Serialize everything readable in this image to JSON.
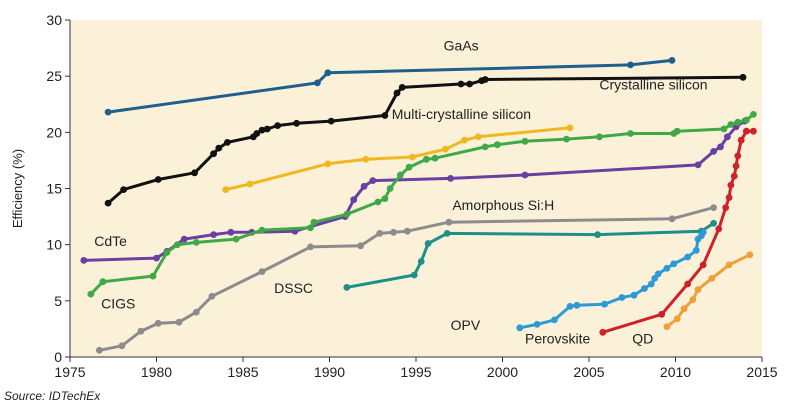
{
  "chart_data": {
    "type": "line",
    "title": "",
    "xlabel": "",
    "ylabel": "Efficiency (%)",
    "xlim": [
      1975,
      2015
    ],
    "ylim": [
      0,
      30
    ],
    "x_ticks": [
      1975,
      1980,
      1985,
      1990,
      1995,
      2000,
      2005,
      2010,
      2015
    ],
    "y_ticks": [
      0,
      5,
      10,
      15,
      20,
      25,
      30
    ],
    "grid": false,
    "background": "#fbf1d9",
    "source": "Source: IDTechEx",
    "series": [
      {
        "name": "GaAs",
        "color": "#1f5f8b",
        "label_at": [
          1996.6,
          27.3
        ],
        "points": [
          [
            1977.2,
            21.8
          ],
          [
            1989.3,
            24.4
          ],
          [
            1989.9,
            25.3
          ],
          [
            2007.4,
            26.0
          ],
          [
            2009.8,
            26.4
          ]
        ]
      },
      {
        "name": "Crystalline silicon",
        "color": "#111111",
        "label_at": [
          2005.6,
          23.8
        ],
        "points": [
          [
            1977.2,
            13.7
          ],
          [
            1978.1,
            14.9
          ],
          [
            1980.1,
            15.8
          ],
          [
            1982.2,
            16.4
          ],
          [
            1983.3,
            18.1
          ],
          [
            1983.6,
            18.6
          ],
          [
            1984.1,
            19.1
          ],
          [
            1985.6,
            19.6
          ],
          [
            1985.8,
            19.9
          ],
          [
            1986.1,
            20.2
          ],
          [
            1986.4,
            20.3
          ],
          [
            1987.0,
            20.6
          ],
          [
            1988.1,
            20.8
          ],
          [
            1990.1,
            21.0
          ],
          [
            1993.2,
            21.5
          ],
          [
            1993.9,
            23.5
          ],
          [
            1994.2,
            24.0
          ],
          [
            1997.6,
            24.3
          ],
          [
            1998.1,
            24.3
          ],
          [
            1998.8,
            24.6
          ],
          [
            1999.0,
            24.7
          ],
          [
            2013.9,
            24.9
          ]
        ]
      },
      {
        "name": "Multi-crystalline silicon",
        "color": "#f0b820",
        "label_at": [
          1993.6,
          21.2
        ],
        "points": [
          [
            1984.0,
            14.9
          ],
          [
            1985.4,
            15.4
          ],
          [
            1989.9,
            17.2
          ],
          [
            1992.1,
            17.6
          ],
          [
            1994.8,
            17.8
          ],
          [
            1996.7,
            18.5
          ],
          [
            1997.8,
            19.3
          ],
          [
            1998.6,
            19.6
          ],
          [
            2003.9,
            20.4
          ]
        ]
      },
      {
        "name": "CdTe",
        "color": "#6a3fa0",
        "label_at": [
          1976.4,
          9.9
        ],
        "points": [
          [
            1975.8,
            8.6
          ],
          [
            1980.0,
            8.8
          ],
          [
            1980.6,
            9.4
          ],
          [
            1981.6,
            10.5
          ],
          [
            1983.3,
            10.9
          ],
          [
            1984.3,
            11.1
          ],
          [
            1985.5,
            11.1
          ],
          [
            1988.0,
            11.2
          ],
          [
            1990.9,
            12.5
          ],
          [
            1991.4,
            14.0
          ],
          [
            1992.0,
            15.2
          ],
          [
            1992.5,
            15.7
          ],
          [
            1997.0,
            15.9
          ],
          [
            2001.3,
            16.2
          ],
          [
            2011.3,
            17.1
          ],
          [
            2012.2,
            18.3
          ],
          [
            2012.6,
            18.7
          ],
          [
            2013.0,
            19.6
          ],
          [
            2013.5,
            20.5
          ],
          [
            2014.0,
            21.0
          ]
        ]
      },
      {
        "name": "CIGS",
        "color": "#3faa45",
        "label_at": [
          1976.8,
          4.3
        ],
        "points": [
          [
            1976.2,
            5.6
          ],
          [
            1976.9,
            6.7
          ],
          [
            1979.8,
            7.2
          ],
          [
            1980.6,
            9.3
          ],
          [
            1981.2,
            10.0
          ],
          [
            1982.3,
            10.2
          ],
          [
            1984.6,
            10.5
          ],
          [
            1986.1,
            11.3
          ],
          [
            1988.9,
            11.5
          ],
          [
            1989.1,
            12.0
          ],
          [
            1991.0,
            12.7
          ],
          [
            1992.8,
            13.8
          ],
          [
            1993.2,
            14.1
          ],
          [
            1993.5,
            15.0
          ],
          [
            1994.1,
            16.2
          ],
          [
            1994.6,
            16.9
          ],
          [
            1995.6,
            17.6
          ],
          [
            1996.1,
            17.7
          ],
          [
            1999.0,
            18.7
          ],
          [
            1999.7,
            18.9
          ],
          [
            2001.3,
            19.2
          ],
          [
            2003.7,
            19.4
          ],
          [
            2005.6,
            19.6
          ],
          [
            2007.4,
            19.9
          ],
          [
            2009.9,
            19.9
          ],
          [
            2010.1,
            20.1
          ],
          [
            2012.8,
            20.3
          ],
          [
            2013.2,
            20.7
          ],
          [
            2013.6,
            20.9
          ],
          [
            2014.1,
            21.1
          ],
          [
            2014.5,
            21.6
          ]
        ]
      },
      {
        "name": "Amorphous Si:H",
        "color": "#8c8c8c",
        "label_at": [
          1997.1,
          13.1
        ],
        "points": [
          [
            1976.7,
            0.6
          ],
          [
            1978.0,
            1.0
          ],
          [
            1979.1,
            2.3
          ],
          [
            1980.1,
            3.0
          ],
          [
            1981.3,
            3.1
          ],
          [
            1982.3,
            4.0
          ],
          [
            1983.2,
            5.4
          ],
          [
            1986.1,
            7.6
          ],
          [
            1988.9,
            9.8
          ],
          [
            1991.8,
            9.9
          ],
          [
            1992.9,
            11.0
          ],
          [
            1993.7,
            11.1
          ],
          [
            1994.5,
            11.2
          ],
          [
            1996.9,
            12.0
          ],
          [
            2009.8,
            12.3
          ],
          [
            2012.2,
            13.3
          ]
        ]
      },
      {
        "name": "DSSC",
        "color": "#1c8f8a",
        "label_at": [
          1986.8,
          5.7
        ],
        "points": [
          [
            1991.0,
            6.2
          ],
          [
            1994.9,
            7.3
          ],
          [
            1995.3,
            8.5
          ],
          [
            1995.7,
            10.1
          ],
          [
            1996.8,
            11.0
          ],
          [
            2005.5,
            10.9
          ],
          [
            2011.5,
            11.2
          ],
          [
            2012.2,
            11.9
          ]
        ]
      },
      {
        "name": "OPV",
        "color": "#2d9ad4",
        "label_at": [
          1997.0,
          2.4
        ],
        "points": [
          [
            2001.0,
            2.6
          ],
          [
            2002.0,
            2.9
          ],
          [
            2003.0,
            3.3
          ],
          [
            2003.9,
            4.5
          ],
          [
            2004.3,
            4.6
          ],
          [
            2005.9,
            4.7
          ],
          [
            2006.9,
            5.3
          ],
          [
            2007.6,
            5.5
          ],
          [
            2008.2,
            6.1
          ],
          [
            2008.6,
            6.5
          ],
          [
            2008.8,
            7.0
          ],
          [
            2009.0,
            7.4
          ],
          [
            2009.5,
            7.9
          ],
          [
            2009.9,
            8.3
          ],
          [
            2010.7,
            8.9
          ],
          [
            2011.2,
            9.5
          ],
          [
            2011.3,
            10.5
          ],
          [
            2011.5,
            10.8
          ],
          [
            2011.6,
            11.1
          ]
        ]
      },
      {
        "name": "Perovskite",
        "color": "#cf2127",
        "label_at": [
          2001.3,
          1.2
        ],
        "points": [
          [
            2005.8,
            2.2
          ],
          [
            2009.2,
            3.8
          ],
          [
            2010.7,
            6.5
          ],
          [
            2011.6,
            8.2
          ],
          [
            2012.5,
            11.4
          ],
          [
            2012.9,
            13.3
          ],
          [
            2013.1,
            14.2
          ],
          [
            2013.2,
            15.3
          ],
          [
            2013.4,
            16.1
          ],
          [
            2013.5,
            17.0
          ],
          [
            2013.6,
            17.9
          ],
          [
            2013.8,
            19.3
          ],
          [
            2014.1,
            20.1
          ],
          [
            2014.5,
            20.1
          ]
        ]
      },
      {
        "name": "QD",
        "color": "#f0a038",
        "label_at": [
          2007.5,
          1.2
        ],
        "points": [
          [
            2009.5,
            2.7
          ],
          [
            2010.1,
            3.4
          ],
          [
            2010.5,
            4.3
          ],
          [
            2011.0,
            5.1
          ],
          [
            2011.3,
            6.0
          ],
          [
            2012.1,
            7.0
          ],
          [
            2013.1,
            8.2
          ],
          [
            2014.3,
            9.1
          ]
        ]
      }
    ]
  }
}
